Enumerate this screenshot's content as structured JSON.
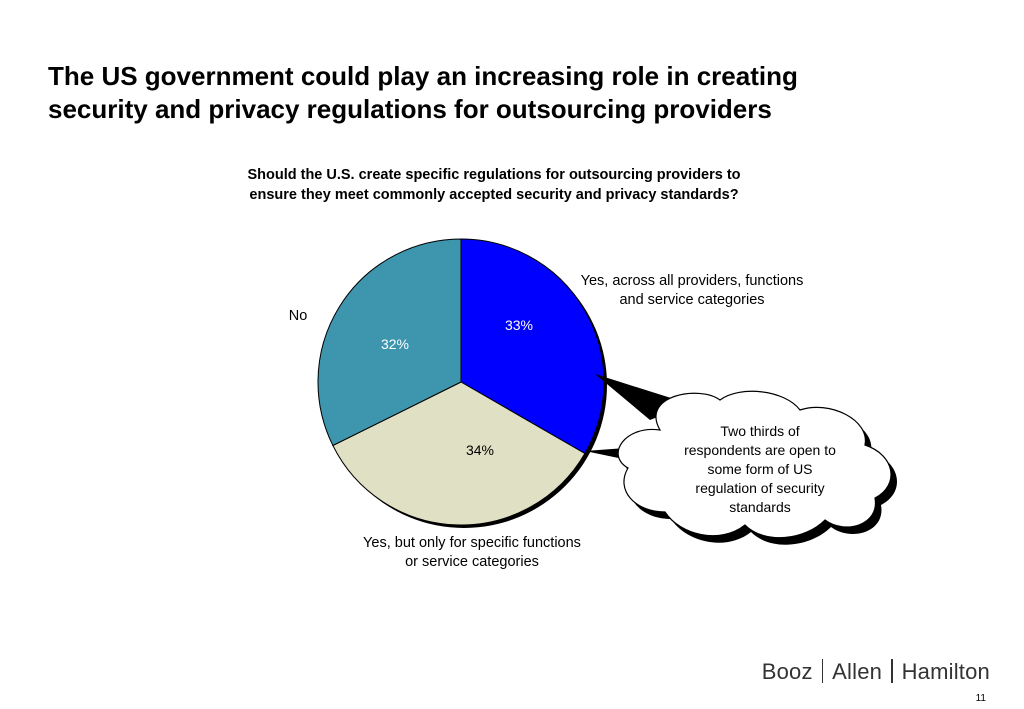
{
  "slide": {
    "title": "The US government could play an increasing role in creating\nsecurity and privacy regulations for outsourcing providers",
    "page_number": "11"
  },
  "logo": {
    "parts": [
      "Booz",
      "Allen",
      "Hamilton"
    ]
  },
  "callout": {
    "text_lines": [
      "Two thirds of",
      "respondents are open to",
      "some form of US",
      "regulation of security",
      "standards"
    ]
  },
  "chart_data": {
    "type": "pie",
    "title": "Should the U.S. create specific regulations for outsourcing providers to\nensure they meet commonly accepted security and privacy standards?",
    "slices": [
      {
        "label": "Yes, across all providers, functions and service categories",
        "label_lines": [
          "Yes, across all providers, functions",
          "and service categories"
        ],
        "value": 33,
        "display": "33%",
        "color": "#0000FF",
        "pct_color": "#FFFFFF"
      },
      {
        "label": "Yes, but only for specific functions or service categories",
        "label_lines": [
          "Yes, but only for specific functions",
          "or service categories"
        ],
        "value": 34,
        "display": "34%",
        "color": "#E0E0C4",
        "pct_color": "#000000"
      },
      {
        "label": "No",
        "label_lines": [
          "No"
        ],
        "value": 32,
        "display": "32%",
        "color": "#3D95AE",
        "pct_color": "#FFFFFF"
      }
    ]
  }
}
